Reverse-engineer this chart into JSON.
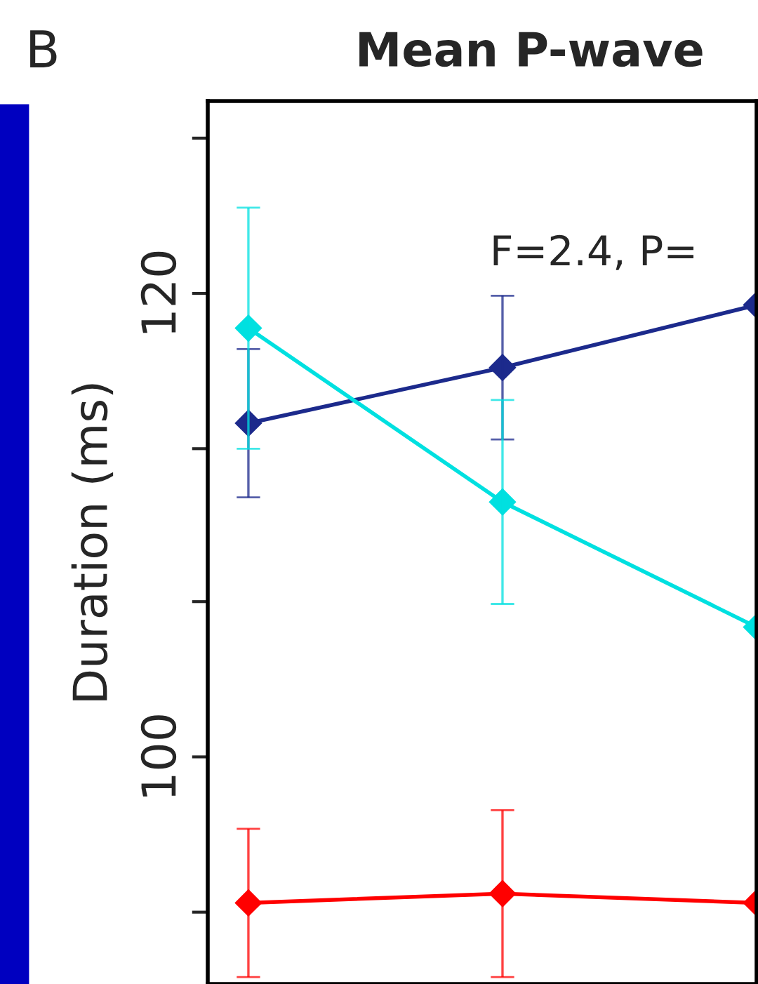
{
  "chart_data": {
    "type": "line",
    "title": "Mean P-wave",
    "ylabel": "Duration (ms)",
    "annotations": [
      "B",
      "F=2.4, P="
    ],
    "categories": [
      null,
      null,
      null
    ],
    "series": [
      {
        "color": "#1c2a8c",
        "values": [
          114.4,
          116.8,
          119.5
        ],
        "errors": [
          3.2,
          3.1,
          null
        ]
      },
      {
        "color": "#00e0e0",
        "values": [
          118.5,
          111.0,
          105.6
        ],
        "errors": [
          5.2,
          4.4,
          null
        ]
      },
      {
        "color": "#ff0000",
        "values": [
          93.7,
          94.1,
          93.7
        ],
        "errors": [
          3.2,
          3.6,
          null
        ]
      }
    ],
    "ylim": [
      90.2,
      128.3
    ],
    "yticks": [
      {
        "value": 93.3,
        "label": null
      },
      100,
      {
        "value": 106.7,
        "label": null
      },
      {
        "value": 113.3,
        "label": null
      },
      120,
      {
        "value": 126.7,
        "label": null
      }
    ],
    "marker": "diamond",
    "tick_labels": "y"
  }
}
